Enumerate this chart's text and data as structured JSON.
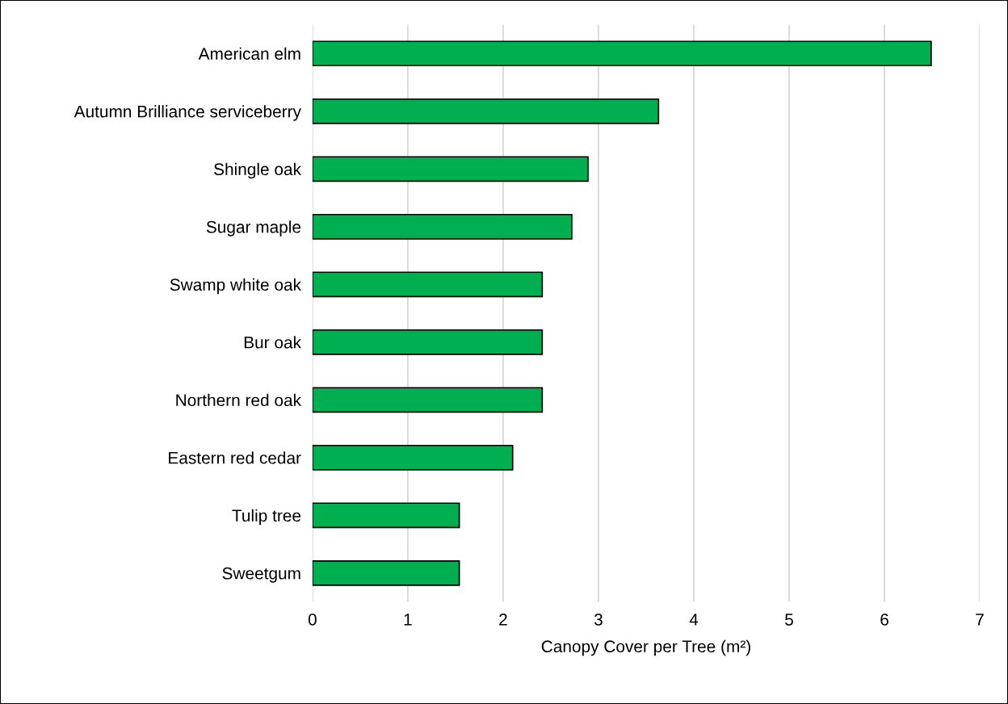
{
  "chart_data": {
    "type": "bar",
    "orientation": "horizontal",
    "xlabel": "Canopy Cover per Tree (m²)",
    "categories": [
      "American elm",
      "Autumn Brilliance serviceberry",
      "Shingle oak",
      "Sugar maple",
      "Swamp white oak",
      "Bur oak",
      "Northern red oak",
      "Eastern red cedar",
      "Tulip tree",
      "Sweetgum"
    ],
    "values": [
      6.49,
      3.63,
      2.89,
      2.72,
      2.41,
      2.41,
      2.41,
      2.1,
      1.54,
      1.54
    ],
    "color": "#00b050",
    "xlim": [
      0,
      7
    ],
    "xticks": [
      0,
      1,
      2,
      3,
      4,
      5,
      6,
      7
    ],
    "grid": "x",
    "legend": false
  }
}
